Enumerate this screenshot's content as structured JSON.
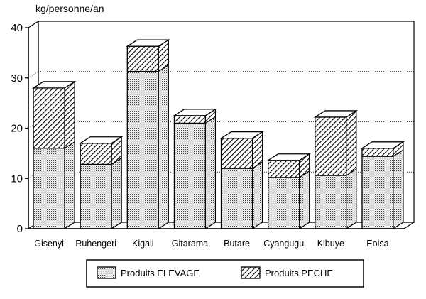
{
  "chart_data": {
    "type": "bar",
    "stacked": true,
    "ylabel": "kg/personne/an",
    "ylim": [
      0,
      40
    ],
    "yticks": [
      0,
      10,
      20,
      30,
      40
    ],
    "grid": "horizontal dotted",
    "categories": [
      "Gisenyi",
      "Ruhengeri",
      "Kigali",
      "Gitarama",
      "Butare",
      "Cyangugu",
      "Kibuye",
      "Eoisa"
    ],
    "series": [
      {
        "name": "Produits ELEVAGE",
        "values": [
          16.0,
          12.8,
          31.3,
          21.0,
          12.0,
          10.2,
          10.6,
          14.4
        ]
      },
      {
        "name": "Produits PECHE",
        "values": [
          12.0,
          4.2,
          5.0,
          1.5,
          6.0,
          3.4,
          11.6,
          1.6
        ]
      }
    ],
    "legend_position": "bottom-center",
    "colors": {
      "elevage": "#d8d8d8",
      "peche_stripe": "#000000",
      "background": "#ffffff"
    }
  }
}
